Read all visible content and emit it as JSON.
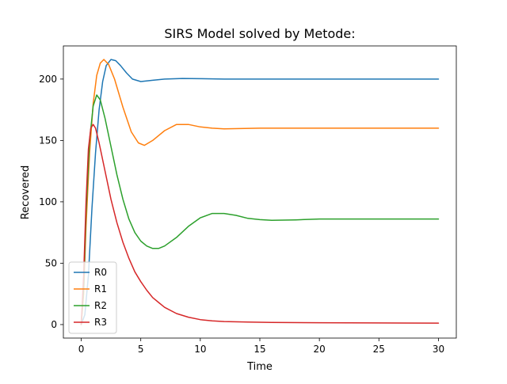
{
  "chart_data": {
    "type": "line",
    "title": "SIRS Model solved by Metode:",
    "xlabel": "Time",
    "ylabel": "Recovered",
    "xlim": [
      -1.5,
      31.5
    ],
    "ylim": [
      -11,
      227
    ],
    "xticks": [
      0,
      5,
      10,
      15,
      20,
      25,
      30
    ],
    "yticks": [
      0,
      50,
      100,
      150,
      200
    ],
    "grid": false,
    "legend_position": "lower-left",
    "series": [
      {
        "name": "R0",
        "color": "#1f77b4",
        "points": [
          [
            0,
            0
          ],
          [
            0.3,
            8
          ],
          [
            0.6,
            40
          ],
          [
            0.9,
            95
          ],
          [
            1.2,
            140
          ],
          [
            1.5,
            175
          ],
          [
            1.8,
            198
          ],
          [
            2.1,
            211
          ],
          [
            2.5,
            216
          ],
          [
            2.9,
            215
          ],
          [
            3.3,
            211
          ],
          [
            3.8,
            205
          ],
          [
            4.3,
            200
          ],
          [
            5,
            198
          ],
          [
            6,
            199
          ],
          [
            7,
            200
          ],
          [
            8.5,
            200.5
          ],
          [
            10,
            200.3
          ],
          [
            12,
            200
          ],
          [
            15,
            200
          ],
          [
            20,
            200
          ],
          [
            25,
            200
          ],
          [
            30,
            200
          ]
        ]
      },
      {
        "name": "R1",
        "color": "#ff7f0e",
        "points": [
          [
            0,
            0
          ],
          [
            0.2,
            25
          ],
          [
            0.4,
            80
          ],
          [
            0.7,
            140
          ],
          [
            1,
            180
          ],
          [
            1.3,
            203
          ],
          [
            1.6,
            213
          ],
          [
            1.9,
            216
          ],
          [
            2.3,
            212
          ],
          [
            2.8,
            200
          ],
          [
            3.5,
            177
          ],
          [
            4.2,
            157
          ],
          [
            4.8,
            148
          ],
          [
            5.3,
            146
          ],
          [
            6,
            150
          ],
          [
            7,
            158
          ],
          [
            8,
            163
          ],
          [
            9,
            163
          ],
          [
            10,
            161
          ],
          [
            11,
            160
          ],
          [
            12,
            159.5
          ],
          [
            15,
            160
          ],
          [
            20,
            160
          ],
          [
            25,
            160
          ],
          [
            30,
            160
          ]
        ]
      },
      {
        "name": "R2",
        "color": "#2ca02c",
        "points": [
          [
            0,
            0
          ],
          [
            0.2,
            30
          ],
          [
            0.4,
            90
          ],
          [
            0.7,
            150
          ],
          [
            1,
            178
          ],
          [
            1.3,
            187
          ],
          [
            1.6,
            183
          ],
          [
            2,
            168
          ],
          [
            2.5,
            145
          ],
          [
            3,
            122
          ],
          [
            3.5,
            102
          ],
          [
            4,
            86
          ],
          [
            4.5,
            75
          ],
          [
            5,
            68
          ],
          [
            5.5,
            64
          ],
          [
            6,
            62
          ],
          [
            6.5,
            62
          ],
          [
            7,
            64
          ],
          [
            8,
            71
          ],
          [
            9,
            80
          ],
          [
            10,
            87
          ],
          [
            11,
            90.5
          ],
          [
            12,
            90.5
          ],
          [
            13,
            89
          ],
          [
            14,
            86.5
          ],
          [
            15,
            85.5
          ],
          [
            16,
            85
          ],
          [
            18,
            85.3
          ],
          [
            20,
            86
          ],
          [
            22,
            86
          ],
          [
            25,
            86
          ],
          [
            30,
            86
          ]
        ]
      },
      {
        "name": "R3",
        "color": "#d62728",
        "points": [
          [
            0,
            0
          ],
          [
            0.2,
            40
          ],
          [
            0.4,
            100
          ],
          [
            0.6,
            143
          ],
          [
            0.8,
            160
          ],
          [
            1,
            163
          ],
          [
            1.2,
            160
          ],
          [
            1.5,
            148
          ],
          [
            2,
            125
          ],
          [
            2.5,
            102
          ],
          [
            3,
            83
          ],
          [
            3.5,
            67
          ],
          [
            4,
            54
          ],
          [
            4.5,
            43
          ],
          [
            5,
            35
          ],
          [
            5.5,
            28
          ],
          [
            6,
            22
          ],
          [
            6.5,
            18
          ],
          [
            7,
            14
          ],
          [
            8,
            9
          ],
          [
            9,
            6
          ],
          [
            10,
            4
          ],
          [
            11,
            3
          ],
          [
            12,
            2.5
          ],
          [
            14,
            2
          ],
          [
            16,
            1.7
          ],
          [
            20,
            1.5
          ],
          [
            25,
            1.3
          ],
          [
            30,
            1.2
          ]
        ]
      }
    ]
  }
}
